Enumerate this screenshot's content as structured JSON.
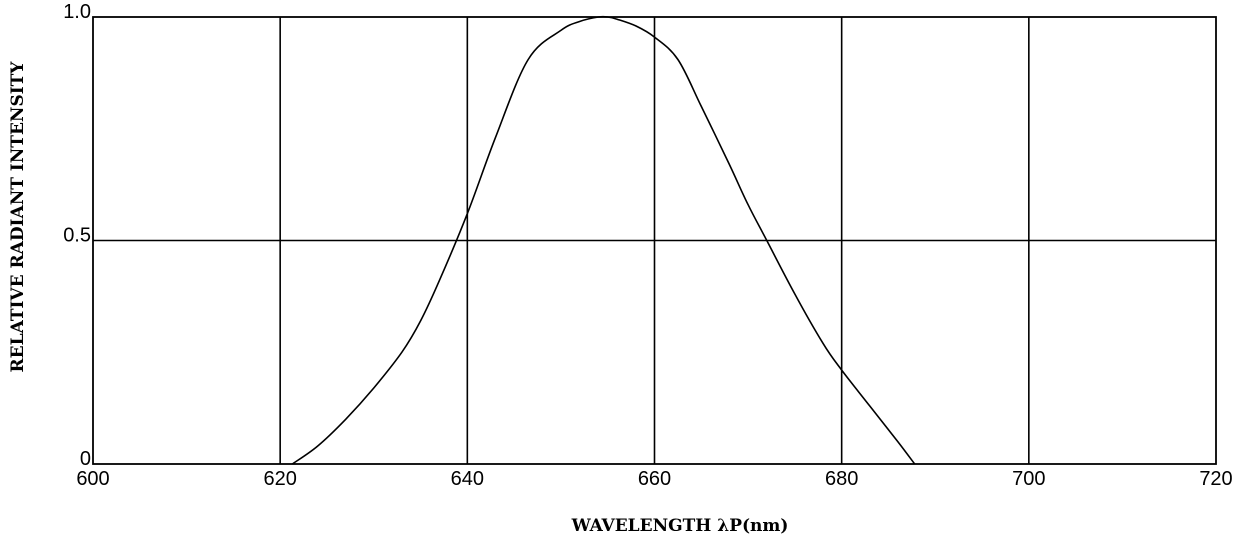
{
  "chart_data": {
    "type": "line",
    "title": "",
    "xlabel": "WAVELENGTH λP(nm)",
    "ylabel": "RELATIVE RADIANT INTENSITY",
    "xlim": [
      600,
      720
    ],
    "ylim": [
      0,
      1.0
    ],
    "x_ticks": [
      600,
      620,
      640,
      660,
      680,
      700,
      720
    ],
    "x_tick_labels": [
      "600",
      "620",
      "640",
      "660",
      "680",
      "700",
      "720"
    ],
    "y_ticks": [
      0,
      0.5,
      1.0
    ],
    "y_tick_labels": [
      "0",
      "0.5",
      "1.0"
    ],
    "grid": true,
    "series": [
      {
        "x": [
          621.3,
          624,
          627,
          630,
          633,
          635,
          637,
          640,
          643,
          646.5,
          650,
          652,
          654,
          655,
          656,
          658,
          660,
          662.5,
          665,
          668,
          670,
          672,
          675,
          678,
          680,
          683,
          686,
          687.8
        ],
        "y": [
          0.0,
          0.04,
          0.1,
          0.17,
          0.25,
          0.32,
          0.41,
          0.56,
          0.73,
          0.905,
          0.97,
          0.99,
          1.0,
          1.0,
          0.995,
          0.98,
          0.955,
          0.905,
          0.8,
          0.67,
          0.58,
          0.5,
          0.38,
          0.27,
          0.21,
          0.13,
          0.05,
          0.0
        ]
      }
    ]
  }
}
